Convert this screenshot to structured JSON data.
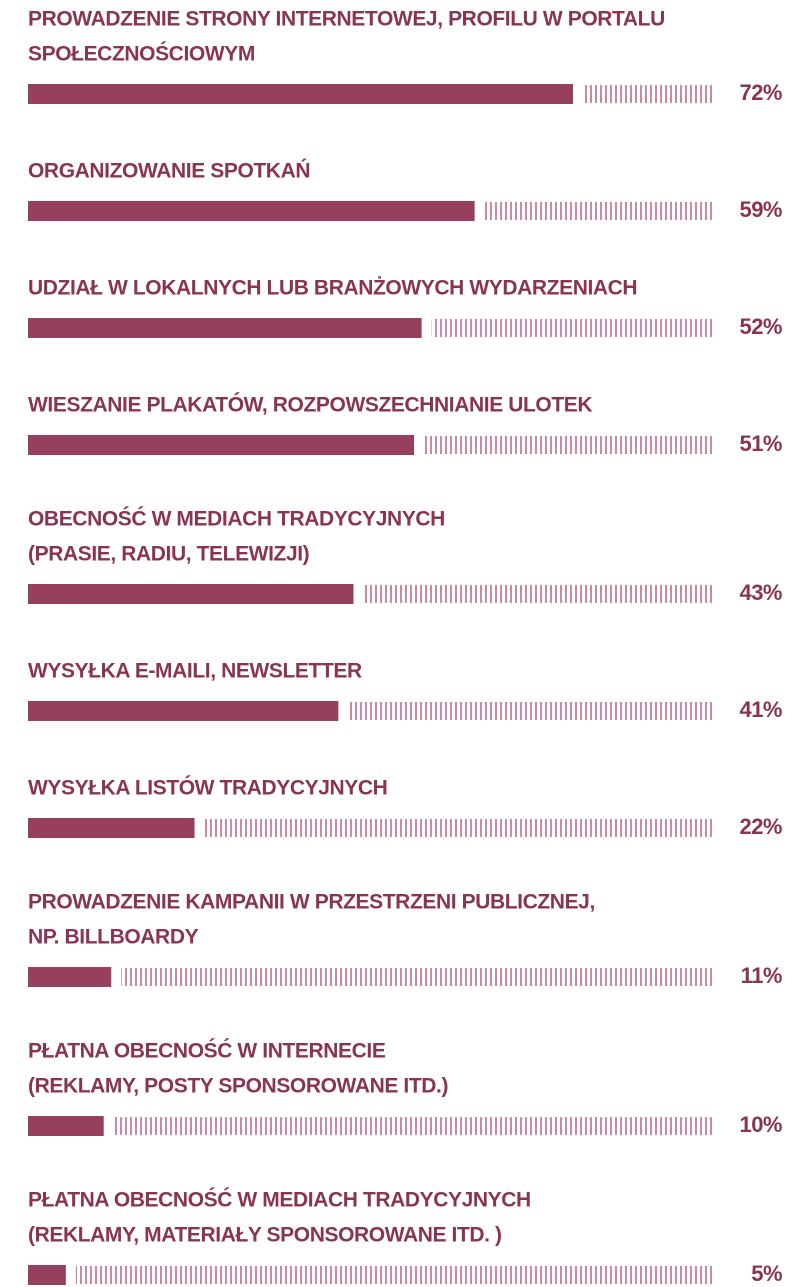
{
  "chart_data": {
    "type": "bar",
    "categories": [
      [
        "PROWADZENIE STRONY INTERNETOWEJ, PROFILU W PORTALU",
        "SPOŁECZNOŚCIOWYM"
      ],
      [
        "ORGANIZOWANIE SPOTKAŃ"
      ],
      [
        "UDZIAŁ W LOKALNYCH LUB BRANŻOWYCH WYDARZENIACH"
      ],
      [
        "WIESZANIE PLAKATÓW, ROZPOWSZECHNIANIE ULOTEK"
      ],
      [
        "OBECNOŚĆ W MEDIACH TRADYCYJNYCH",
        "(PRASIE, RADIU, TELEWIZJI)"
      ],
      [
        "WYSYŁKA E-MAILI, NEWSLETTER"
      ],
      [
        "WYSYŁKA LISTÓW TRADYCYJNYCH"
      ],
      [
        "PROWADZENIE KAMPANII W PRZESTRZENI PUBLICZNEJ,",
        "NP. BILLBOARDY"
      ],
      [
        "PŁATNA OBECNOŚĆ W INTERNECIE",
        "(REKLAMY, POSTY SPONSOROWANE ITD.)"
      ],
      [
        "PŁATNA OBECNOŚĆ W MEDIACH TRADYCYJNYCH",
        "(REKLAMY, MATERIAŁY SPONSOROWANE ITD. )"
      ]
    ],
    "values": [
      72,
      59,
      52,
      51,
      43,
      41,
      22,
      11,
      10,
      5
    ],
    "value_labels": [
      "72%",
      "59%",
      "52%",
      "51%",
      "43%",
      "41%",
      "22%",
      "11%",
      "10%",
      "5%"
    ],
    "color": "#963f5e",
    "track_color": "#c98ba3"
  }
}
